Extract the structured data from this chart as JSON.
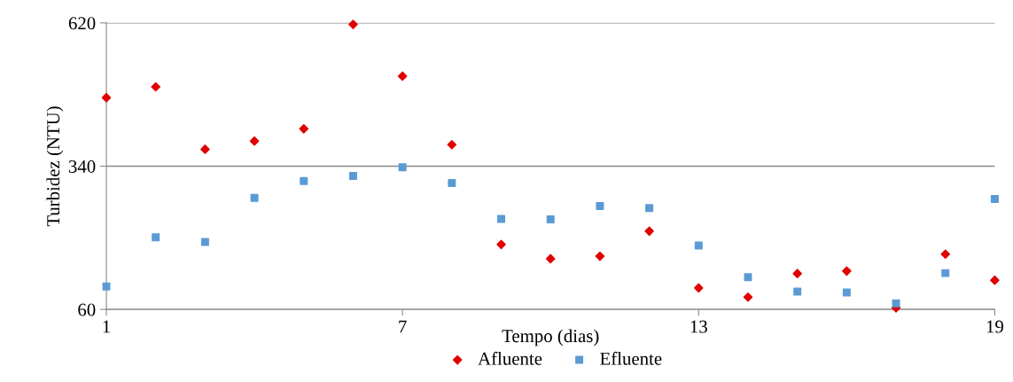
{
  "chart_data": {
    "type": "scatter",
    "xlabel": "Tempo (dias)",
    "ylabel": "Turbidez (NTU)",
    "x": [
      1,
      2,
      3,
      4,
      5,
      6,
      7,
      8,
      9,
      10,
      11,
      12,
      13,
      14,
      15,
      16,
      17,
      18,
      19
    ],
    "series": [
      {
        "name": "Afluente",
        "color": "#e00000",
        "marker": "diamond",
        "values": [
          474,
          495,
          373,
          389,
          413,
          617,
          516,
          382,
          187,
          159,
          164,
          213,
          102,
          84,
          130,
          135,
          63,
          168,
          117
        ]
      },
      {
        "name": "Efluente",
        "color": "#5b9bd5",
        "marker": "square",
        "values": [
          105,
          201,
          192,
          278,
          311,
          321,
          338,
          307,
          237,
          236,
          262,
          258,
          185,
          123,
          95,
          93,
          72,
          131,
          276
        ]
      }
    ],
    "xlim": [
      1,
      19
    ],
    "xticks": [
      1,
      7,
      13,
      19
    ],
    "ylim": [
      60,
      620
    ],
    "yticks": [
      60,
      340,
      620
    ],
    "grid": "y",
    "legend": "bottom"
  }
}
